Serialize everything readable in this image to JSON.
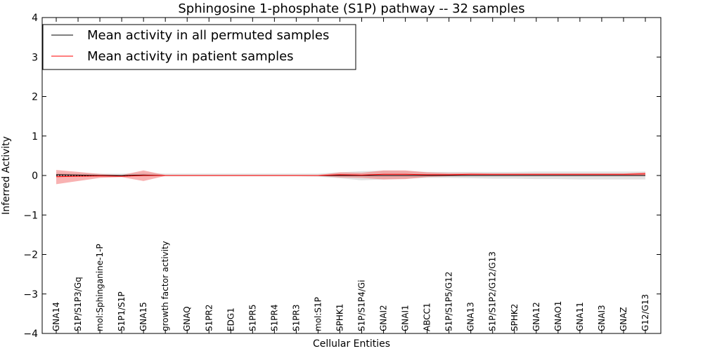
{
  "chart_data": {
    "type": "line",
    "title": "Sphingosine 1-phosphate (S1P) pathway -- 32 samples",
    "xlabel": "Cellular Entities",
    "ylabel": "Inferred Activity",
    "ylim": [
      -4,
      4
    ],
    "yticks": [
      4,
      3,
      2,
      1,
      0,
      -1,
      -2,
      -3,
      -4
    ],
    "ytick_labels": [
      "4",
      "3",
      "2",
      "1",
      "0",
      "−1",
      "−2",
      "−3",
      "−4"
    ],
    "categories": [
      "GNA14",
      "S1P/S1P3/Gq",
      "mol:Sphinganine-1-P",
      "S1P1/S1P",
      "GNA15",
      "growth factor activity",
      "GNAQ",
      "S1PR2",
      "EDG1",
      "S1PR5",
      "S1PR4",
      "S1PR3",
      "mol:S1P",
      "SPHK1",
      "S1P/S1P4/Gi",
      "GNAI2",
      "GNAI1",
      "ABCC1",
      "S1P/S1P5/G12",
      "GNA13",
      "S1P/S1P2/G12/G13",
      "SPHK2",
      "GNA12",
      "GNAO1",
      "GNA11",
      "GNAI3",
      "GNAZ",
      "G12/G13"
    ],
    "legend_position": "top-left",
    "series": [
      {
        "name": "Mean activity in all permuted samples",
        "color": "#000000",
        "band_color": "#c8c8c8",
        "values": [
          0.02,
          0.01,
          0.0,
          0.0,
          0.01,
          0.0,
          0.0,
          0.0,
          0.0,
          0.0,
          0.0,
          0.0,
          0.0,
          0.0,
          0.0,
          0.0,
          0.0,
          0.0,
          0.0,
          0.0,
          0.0,
          0.0,
          0.0,
          0.0,
          0.0,
          0.0,
          0.0,
          0.0
        ],
        "lower": [
          -0.03,
          -0.03,
          -0.02,
          -0.02,
          -0.03,
          -0.02,
          -0.02,
          -0.02,
          -0.02,
          -0.02,
          -0.02,
          -0.02,
          -0.03,
          -0.07,
          -0.12,
          -0.1,
          -0.08,
          -0.06,
          -0.06,
          -0.07,
          -0.08,
          -0.08,
          -0.09,
          -0.09,
          -0.1,
          -0.1,
          -0.1,
          -0.1
        ],
        "upper": [
          0.07,
          0.06,
          0.05,
          0.05,
          0.07,
          0.05,
          0.05,
          0.05,
          0.05,
          0.05,
          0.05,
          0.05,
          0.05,
          0.08,
          0.11,
          0.12,
          0.11,
          0.09,
          0.09,
          0.09,
          0.09,
          0.09,
          0.1,
          0.1,
          0.1,
          0.1,
          0.1,
          0.1
        ]
      },
      {
        "name": "Mean activity in patient samples",
        "color": "#ff0000",
        "band_color": "#f47f7f",
        "values": [
          -0.03,
          -0.02,
          -0.01,
          -0.02,
          0.0,
          0.0,
          0.0,
          0.0,
          0.0,
          0.0,
          0.0,
          0.0,
          0.0,
          0.02,
          0.01,
          0.03,
          0.03,
          0.02,
          0.02,
          0.03,
          0.03,
          0.03,
          0.03,
          0.03,
          0.03,
          0.03,
          0.03,
          0.04
        ],
        "lower": [
          -0.22,
          -0.14,
          -0.06,
          -0.04,
          -0.14,
          -0.01,
          -0.01,
          -0.01,
          -0.01,
          -0.01,
          -0.01,
          -0.01,
          -0.01,
          -0.05,
          -0.06,
          -0.1,
          -0.09,
          -0.04,
          -0.02,
          -0.01,
          -0.01,
          -0.01,
          -0.01,
          -0.01,
          -0.01,
          -0.01,
          -0.01,
          -0.01
        ],
        "upper": [
          0.14,
          0.09,
          0.04,
          0.01,
          0.13,
          0.01,
          0.01,
          0.01,
          0.01,
          0.01,
          0.01,
          0.01,
          0.01,
          0.08,
          0.07,
          0.13,
          0.13,
          0.08,
          0.06,
          0.06,
          0.05,
          0.05,
          0.05,
          0.05,
          0.05,
          0.05,
          0.05,
          0.08
        ]
      }
    ]
  }
}
